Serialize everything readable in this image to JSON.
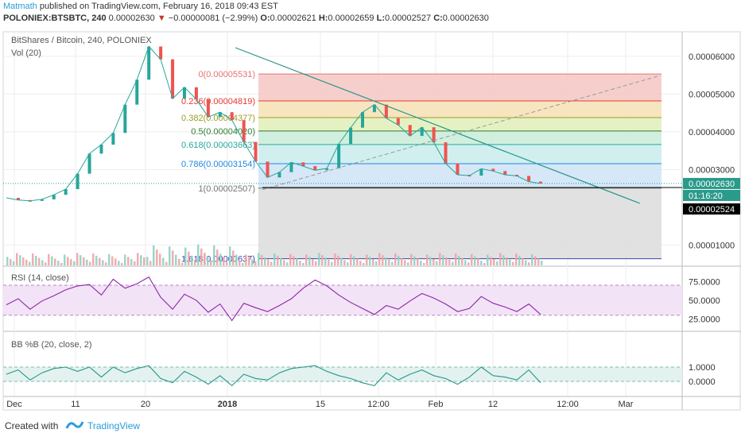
{
  "header": {
    "author": "Matmath",
    "published": "published on TradingView.com, February 16, 2018 09:43 EST",
    "symbol": "POLONIEX:BTSBTC, 240",
    "last": "0.00002630",
    "arrow": "▼",
    "change": "−0.00000081 (−2.99%)",
    "o_label": "O:",
    "o": "0.00002621",
    "h_label": "H:",
    "h": "0.00002659",
    "l_label": "L:",
    "l": "0.00002527",
    "c_label": "C:",
    "c": "0.00002630"
  },
  "legend": {
    "title": "BitShares / Bitcoin, 240, POLONIEX",
    "vol": "Vol (20)",
    "rsi": "RSI (14, close)",
    "bb": "BB %B (20, close, 2)"
  },
  "price_axis": {
    "ticks": [
      "0.00006000",
      "0.00005000",
      "0.00004000",
      "0.00003000",
      "0.00001000"
    ],
    "tick_values": [
      6e-05,
      5e-05,
      4e-05,
      3e-05,
      1e-05
    ],
    "label_last": "0.00002630",
    "label_countdown": "01:16:20",
    "label_low": "0.00002524",
    "colors": {
      "last": "#2a9a8a",
      "countdown": "#2a9a8a",
      "low": "#000000"
    }
  },
  "rsi_axis": {
    "ticks": [
      "75.0000",
      "50.0000",
      "25.0000"
    ],
    "tick_values": [
      75,
      50,
      25
    ],
    "band": [
      30,
      70
    ],
    "color": "#8e24aa"
  },
  "bb_axis": {
    "ticks": [
      "1.0000",
      "0.0000"
    ],
    "tick_values": [
      1,
      0
    ],
    "color": "#26968a"
  },
  "time_axis": {
    "labels": [
      "Dec",
      "11",
      "20",
      "2018",
      "15",
      "12:00",
      "Feb",
      "12",
      "12:00",
      "Mar"
    ],
    "bold": [
      false,
      false,
      false,
      true,
      false,
      false,
      false,
      false,
      false,
      false
    ]
  },
  "fib": {
    "levels": [
      {
        "label": "0(0.00005531)",
        "value": 5.531e-05,
        "color": "#e57373"
      },
      {
        "label": "0.236(0.00004819)",
        "value": 4.819e-05,
        "color": "#e53935"
      },
      {
        "label": "0.382(0.00004377)",
        "value": 4.377e-05,
        "color": "#9e9d24"
      },
      {
        "label": "0.5(0.00004020)",
        "value": 4.02e-05,
        "color": "#2e7d32"
      },
      {
        "label": "0.618(0.00003663)",
        "value": 3.663e-05,
        "color": "#26a69a"
      },
      {
        "label": "0.786(0.00003154)",
        "value": 3.154e-05,
        "color": "#1e88e5"
      },
      {
        "label": "1(0.00002507)",
        "value": 2.507e-05,
        "color": "#757575"
      },
      {
        "label": "1.618(0.00000637)",
        "value": 6.37e-06,
        "color": "#3949ab"
      }
    ],
    "fills": [
      "#f4c7c3",
      "#f6e0b5",
      "#e2efb9",
      "#c9ecd8",
      "#c9ecec",
      "#cfe3f6",
      "#dcdcdc",
      "#c6c8f3"
    ]
  },
  "chart_data": {
    "type": "line",
    "series": [
      {
        "values": [
          2.25e-05,
          2.19e-05,
          2.17e-05,
          2.21e-05,
          2.33e-05,
          2.48e-05,
          2.89e-05,
          3.42e-05,
          3.66e-05,
          3.97e-05,
          4.72e-05,
          5.38e-05,
          6.26e-05,
          5.92e-05,
          4.88e-05,
          5.18e-05,
          4.86e-05,
          4.39e-05,
          4.52e-05,
          4.31e-05,
          3.73e-05,
          3.21e-05,
          2.79e-05,
          2.93e-05,
          3.19e-05,
          3.09e-05,
          2.98e-05,
          3.03e-05,
          3.68e-05,
          4.11e-05,
          4.52e-05,
          4.72e-05,
          4.36e-05,
          4.18e-05,
          3.89e-05,
          4.12e-05,
          3.72e-05,
          3.16e-05,
          2.86e-05,
          2.84e-05,
          3.02e-05,
          2.96e-05,
          2.86e-05,
          2.83e-05,
          2.68e-05,
          2.63e-05
        ],
        "color": "#26a69a"
      },
      {
        "values": [
          44,
          52,
          38,
          49,
          56,
          64,
          69,
          71,
          57,
          78,
          66,
          72,
          81,
          54,
          38,
          58,
          50,
          34,
          45,
          23,
          46,
          40,
          35,
          43,
          52,
          66,
          77,
          69,
          57,
          47,
          39,
          31,
          43,
          38,
          49,
          59,
          53,
          45,
          35,
          39,
          55,
          46,
          41,
          35,
          45,
          31
        ],
        "color": "#8e24aa"
      },
      {
        "values": [
          0.5,
          0.8,
          0.1,
          0.6,
          0.9,
          1.0,
          0.7,
          1.0,
          0.3,
          1.0,
          0.6,
          0.9,
          1.1,
          0.2,
          -0.1,
          0.7,
          0.3,
          -0.2,
          0.4,
          -0.3,
          0.5,
          0.2,
          0.1,
          0.6,
          0.9,
          1.0,
          1.1,
          0.7,
          0.4,
          0.2,
          -0.1,
          -0.3,
          0.6,
          0.1,
          0.5,
          0.8,
          0.4,
          0.2,
          -0.2,
          0.3,
          1.0,
          0.4,
          0.3,
          0.1,
          0.8,
          -0.1
        ],
        "color": "#26968a"
      }
    ]
  }
}
